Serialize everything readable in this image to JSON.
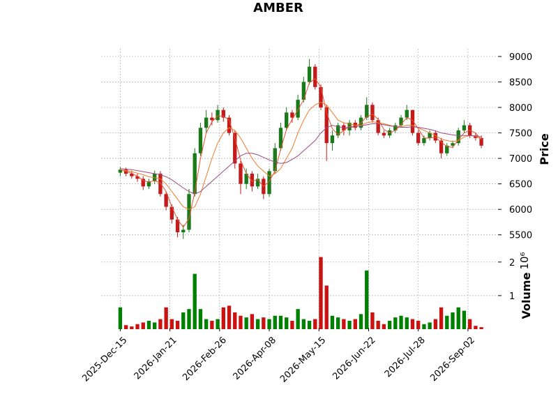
{
  "chart_data": {
    "type": "candlestick",
    "title": "AMBER",
    "y_label": "Price",
    "volume_label": "Volume",
    "volume_scale_label": "10⁶",
    "up_color": "#1a7a1a",
    "down_color": "#c41a1a",
    "volume_up_color": "#008000",
    "volume_down_color": "#cc1111",
    "grid": true,
    "x": [
      0,
      3,
      6,
      9,
      12,
      15,
      18,
      21,
      24,
      27,
      30,
      33,
      36,
      39,
      42,
      45,
      48,
      51,
      54,
      57,
      60,
      63,
      66,
      69,
      72,
      75,
      78,
      81,
      84,
      87,
      90,
      93,
      96,
      99,
      102,
      105,
      108,
      111,
      114,
      117,
      120,
      123,
      126,
      129,
      132,
      135,
      138,
      141,
      144,
      147,
      150,
      153,
      156,
      159,
      162,
      165,
      168,
      171,
      174,
      177,
      180,
      183,
      186,
      189
    ],
    "xlim": [
      -10,
      197
    ],
    "xticks": [
      {
        "value": 0,
        "label": "2025-Dec-15"
      },
      {
        "value": 26,
        "label": "2026-Jan-21"
      },
      {
        "value": 52,
        "label": "2026-Feb-26"
      },
      {
        "value": 78,
        "label": "2026-Apr-08"
      },
      {
        "value": 104,
        "label": "2026-May-15"
      },
      {
        "value": 130,
        "label": "2026-Jun-22"
      },
      {
        "value": 156,
        "label": "2026-Jul-28"
      },
      {
        "value": 182,
        "label": "2026-Sep-02"
      }
    ],
    "open": [
      6720,
      6780,
      6700,
      6650,
      6600,
      6450,
      6550,
      6700,
      6300,
      6050,
      5800,
      5550,
      5600,
      6300,
      7100,
      7600,
      7800,
      7750,
      7950,
      7800,
      7500,
      6900,
      6500,
      6700,
      6450,
      6600,
      6300,
      6750,
      7200,
      7600,
      7900,
      7800,
      8150,
      8500,
      8800,
      8400,
      8000,
      7300,
      7450,
      7650,
      7550,
      7700,
      7600,
      7800,
      8050,
      7750,
      7500,
      7450,
      7550,
      7650,
      7800,
      7950,
      7500,
      7300,
      7400,
      7500,
      7350,
      7100,
      7250,
      7300,
      7550,
      7650,
      7450,
      7400
    ],
    "high": [
      6830,
      6820,
      6760,
      6700,
      6650,
      6600,
      6760,
      6750,
      6350,
      6100,
      5850,
      5700,
      6400,
      7200,
      7700,
      7950,
      7900,
      8050,
      8000,
      7850,
      7550,
      6950,
      6800,
      6750,
      6700,
      6650,
      6800,
      7300,
      7700,
      8000,
      7950,
      8250,
      8600,
      8950,
      8850,
      8450,
      8050,
      7550,
      7700,
      7700,
      7750,
      7750,
      7850,
      8200,
      8100,
      7800,
      7550,
      7600,
      7700,
      7850,
      8050,
      7950,
      7550,
      7450,
      7550,
      7550,
      7400,
      7300,
      7350,
      7600,
      7750,
      7700,
      7500,
      7450
    ],
    "low": [
      6650,
      6650,
      6600,
      6540,
      6380,
      6400,
      6500,
      6250,
      5980,
      5720,
      5450,
      5420,
      5550,
      6250,
      7050,
      7500,
      7650,
      7700,
      7720,
      7450,
      6800,
      6300,
      6400,
      6350,
      6400,
      6200,
      6250,
      6700,
      7150,
      7550,
      7700,
      7750,
      8100,
      8450,
      8350,
      7950,
      6950,
      7150,
      7400,
      7450,
      7450,
      7550,
      7550,
      7750,
      7700,
      7450,
      7400,
      7400,
      7500,
      7600,
      7750,
      7450,
      7250,
      7250,
      7350,
      7300,
      7000,
      7050,
      7200,
      7250,
      7500,
      7400,
      7350,
      7200
    ],
    "close": [
      6780,
      6700,
      6650,
      6600,
      6450,
      6550,
      6700,
      6300,
      6050,
      5800,
      5550,
      5600,
      6300,
      7100,
      7600,
      7800,
      7750,
      7950,
      7800,
      7500,
      6900,
      6500,
      6700,
      6450,
      6600,
      6300,
      6750,
      7200,
      7600,
      7900,
      7800,
      8150,
      8500,
      8800,
      8400,
      8000,
      7300,
      7450,
      7650,
      7550,
      7700,
      7600,
      7800,
      8050,
      7750,
      7500,
      7450,
      7550,
      7650,
      7800,
      7950,
      7500,
      7300,
      7400,
      7500,
      7350,
      7100,
      7250,
      7300,
      7550,
      7650,
      7450,
      7400,
      7250
    ],
    "volume": [
      650000,
      120000,
      80000,
      150000,
      200000,
      250000,
      200000,
      300000,
      650000,
      300000,
      250000,
      500000,
      600000,
      1650000,
      600000,
      300000,
      250000,
      300000,
      650000,
      700000,
      500000,
      400000,
      350000,
      450000,
      300000,
      350000,
      300000,
      400000,
      400000,
      350000,
      250000,
      600000,
      300000,
      250000,
      300000,
      2150000,
      1300000,
      400000,
      350000,
      300000,
      250000,
      300000,
      450000,
      1750000,
      500000,
      250000,
      150000,
      250000,
      350000,
      400000,
      350000,
      300000,
      250000,
      150000,
      200000,
      300000,
      650000,
      400000,
      500000,
      650000,
      550000,
      300000,
      100000,
      60000
    ],
    "series": [
      {
        "color": "#e8502a",
        "values": [
          6780,
          6740,
          6710,
          6650,
          6567,
          6533,
          6567,
          6517,
          6350,
          6050,
          5800,
          5650,
          5817,
          6333,
          7000,
          7500,
          7717,
          7833,
          7833,
          7750,
          7400,
          6967,
          6700,
          6550,
          6583,
          6450,
          6550,
          6750,
          7183,
          7567,
          7767,
          7950,
          8150,
          8483,
          8567,
          8400,
          7900,
          7583,
          7467,
          7550,
          7633,
          7617,
          7700,
          7817,
          7867,
          7767,
          7567,
          7500,
          7550,
          7667,
          7800,
          7750,
          7583,
          7400,
          7400,
          7417,
          7317,
          7233,
          7217,
          7367,
          7500,
          7550,
          7500,
          7367
        ]
      },
      {
        "color": "#f07a2a",
        "values": [
          6780,
          6760,
          6740,
          6710,
          6680,
          6640,
          6620,
          6600,
          6500,
          6350,
          6200,
          6050,
          6000,
          6050,
          6300,
          6650,
          7000,
          7300,
          7500,
          7600,
          7550,
          7400,
          7200,
          7000,
          6850,
          6750,
          6650,
          6700,
          6800,
          7000,
          7200,
          7500,
          7750,
          7950,
          8050,
          8100,
          8050,
          7900,
          7750,
          7700,
          7680,
          7650,
          7650,
          7700,
          7720,
          7700,
          7680,
          7650,
          7620,
          7620,
          7650,
          7650,
          7600,
          7550,
          7500,
          7450,
          7380,
          7350,
          7330,
          7350,
          7420,
          7450,
          7430,
          7380
        ]
      },
      {
        "color": "#9b4a80",
        "values": [
          6800,
          6790,
          6780,
          6760,
          6740,
          6720,
          6700,
          6680,
          6640,
          6580,
          6500,
          6420,
          6350,
          6300,
          6350,
          6450,
          6550,
          6650,
          6750,
          6850,
          6950,
          7050,
          7100,
          7100,
          7070,
          7020,
          6970,
          6930,
          6900,
          6920,
          6980,
          7050,
          7150,
          7250,
          7350,
          7500,
          7600,
          7650,
          7620,
          7600,
          7610,
          7620,
          7640,
          7660,
          7680,
          7680,
          7660,
          7640,
          7620,
          7610,
          7610,
          7620,
          7610,
          7590,
          7570,
          7540,
          7500,
          7480,
          7460,
          7450,
          7450,
          7450,
          7440,
          7420
        ]
      }
    ],
    "ylim": [
      5250,
      9150
    ],
    "yticks": [
      5500,
      6000,
      6500,
      7000,
      7500,
      8000,
      8500,
      9000
    ],
    "volume_ylim": [
      0,
      2370000
    ],
    "volume_yticks": [
      {
        "value": 1000000,
        "label": "1"
      },
      {
        "value": 2000000,
        "label": "2"
      }
    ]
  }
}
